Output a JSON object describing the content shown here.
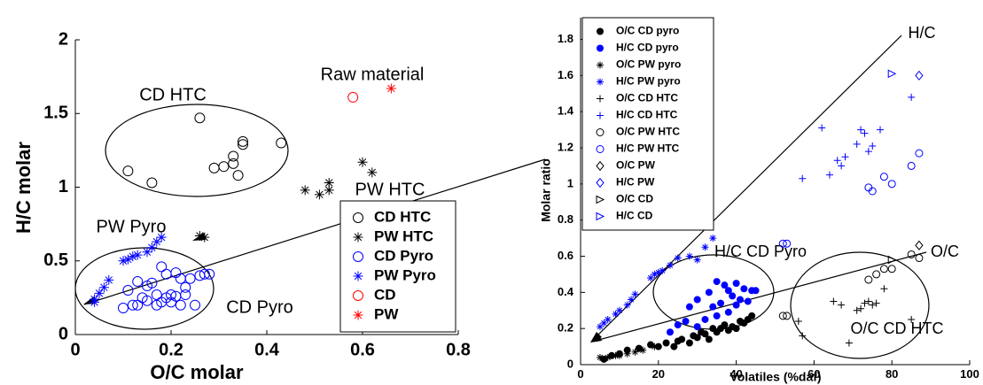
{
  "chart_data": [
    {
      "type": "scatter",
      "x_label": "O/C molar",
      "y_label": "H/C molar",
      "xlim": [
        0,
        0.8
      ],
      "xticks": [
        0,
        0.2,
        0.4,
        0.6,
        0.8
      ],
      "ylim": [
        0,
        2
      ],
      "yticks": [
        0,
        0.5,
        1,
        1.5,
        2
      ],
      "legend": "lower right",
      "annotations": [
        "Raw material",
        "CD HTC",
        "PW HTC",
        "PW Pyro",
        "CD Pyro"
      ],
      "series": [
        {
          "name": "CD HTC",
          "color": "#000000",
          "marker": "circle",
          "x": [
            0.11,
            0.16,
            0.26,
            0.29,
            0.31,
            0.33,
            0.33,
            0.34,
            0.35,
            0.35,
            0.43
          ],
          "values": [
            1.11,
            1.03,
            1.47,
            1.13,
            1.14,
            1.16,
            1.21,
            1.08,
            1.29,
            1.31,
            1.3
          ]
        },
        {
          "name": "PW HTC",
          "color": "#000000",
          "marker": "asterisk",
          "x": [
            0.26,
            0.27,
            0.48,
            0.51,
            0.53,
            0.53,
            0.6,
            0.62
          ],
          "values": [
            0.67,
            0.66,
            0.98,
            0.95,
            1.03,
            0.98,
            1.17,
            1.1
          ]
        },
        {
          "name": "CD Pyro",
          "color": "#0000ff",
          "marker": "circle",
          "x": [
            0.1,
            0.11,
            0.12,
            0.13,
            0.13,
            0.14,
            0.15,
            0.15,
            0.16,
            0.17,
            0.17,
            0.18,
            0.18,
            0.19,
            0.19,
            0.2,
            0.2,
            0.21,
            0.21,
            0.22,
            0.22,
            0.23,
            0.23,
            0.24,
            0.25,
            0.26,
            0.27,
            0.28
          ],
          "values": [
            0.18,
            0.3,
            0.2,
            0.2,
            0.36,
            0.25,
            0.23,
            0.33,
            0.35,
            0.2,
            0.27,
            0.22,
            0.46,
            0.25,
            0.41,
            0.27,
            0.22,
            0.42,
            0.26,
            0.38,
            0.2,
            0.32,
            0.27,
            0.38,
            0.2,
            0.4,
            0.41,
            0.41
          ]
        },
        {
          "name": "PW Pyro",
          "color": "#0000ff",
          "marker": "asterisk",
          "x": [
            0.04,
            0.04,
            0.05,
            0.06,
            0.07,
            0.1,
            0.11,
            0.12,
            0.13,
            0.15,
            0.16,
            0.17,
            0.18
          ],
          "values": [
            0.22,
            0.24,
            0.28,
            0.32,
            0.37,
            0.5,
            0.51,
            0.53,
            0.54,
            0.56,
            0.59,
            0.63,
            0.66
          ]
        },
        {
          "name": "CD",
          "color": "#ff0000",
          "marker": "circle",
          "x": [
            0.58
          ],
          "values": [
            1.61
          ]
        },
        {
          "name": "PW",
          "color": "#ff0000",
          "marker": "asterisk",
          "x": [
            0.66
          ],
          "values": [
            1.67
          ]
        }
      ]
    },
    {
      "type": "scatter",
      "x_label": "Volatiles (%daf)",
      "y_label": "Molar ratio",
      "xlim": [
        0,
        100
      ],
      "xticks": [
        0,
        20,
        40,
        60,
        80,
        100
      ],
      "ylim": [
        0,
        1.92
      ],
      "yticks": [
        0,
        0.2,
        0.4,
        0.6,
        0.8,
        1,
        1.2,
        1.4,
        1.6,
        1.8
      ],
      "legend": "upper left",
      "annotations": [
        "H/C",
        "O/C",
        "H/C CD Pyro",
        "O/C CD HTC"
      ],
      "series": [
        {
          "name": "O/C CD pyro",
          "color": "#000000",
          "marker": "dot",
          "x": [
            6,
            8,
            10,
            12,
            15,
            18,
            20,
            22,
            24,
            25,
            26,
            28,
            29,
            30,
            31,
            32,
            33,
            34,
            35,
            36,
            37,
            38,
            39,
            40,
            41,
            42,
            43,
            44
          ],
          "values": [
            0.03,
            0.05,
            0.06,
            0.08,
            0.09,
            0.11,
            0.1,
            0.12,
            0.1,
            0.13,
            0.14,
            0.12,
            0.16,
            0.15,
            0.18,
            0.17,
            0.14,
            0.2,
            0.18,
            0.2,
            0.22,
            0.19,
            0.21,
            0.2,
            0.24,
            0.23,
            0.25,
            0.27
          ]
        },
        {
          "name": "H/C CD pyro",
          "color": "#0000ff",
          "marker": "dot",
          "x": [
            23,
            25,
            27,
            28,
            30,
            30,
            32,
            33,
            34,
            35,
            35,
            36,
            37,
            38,
            38,
            39,
            40,
            40,
            41,
            42,
            43,
            44,
            45
          ],
          "values": [
            0.18,
            0.22,
            0.24,
            0.32,
            0.21,
            0.36,
            0.25,
            0.4,
            0.32,
            0.27,
            0.46,
            0.34,
            0.44,
            0.29,
            0.41,
            0.38,
            0.45,
            0.33,
            0.36,
            0.42,
            0.35,
            0.41,
            0.41
          ]
        },
        {
          "name": "O/C PW pyro",
          "color": "#000000",
          "marker": "asterisk",
          "x": [
            5,
            7,
            9,
            10,
            12,
            14,
            16,
            19
          ],
          "values": [
            0.04,
            0.04,
            0.05,
            0.05,
            0.06,
            0.07,
            0.08,
            0.1
          ]
        },
        {
          "name": "H/C PW pyro",
          "color": "#0000ff",
          "marker": "asterisk",
          "x": [
            5,
            6,
            7,
            9,
            10,
            12,
            13,
            14,
            18,
            19,
            20,
            21,
            23,
            25,
            28,
            30,
            32,
            34
          ],
          "values": [
            0.21,
            0.23,
            0.25,
            0.28,
            0.3,
            0.33,
            0.36,
            0.39,
            0.48,
            0.5,
            0.51,
            0.52,
            0.55,
            0.59,
            0.6,
            0.58,
            0.65,
            0.7
          ]
        },
        {
          "name": "O/C CD HTC",
          "color": "#000000",
          "marker": "plus",
          "x": [
            56,
            57,
            65,
            67,
            69,
            71,
            72,
            73,
            74,
            75,
            76,
            78,
            85
          ],
          "values": [
            0.24,
            0.16,
            0.35,
            0.33,
            0.12,
            0.3,
            0.31,
            0.34,
            0.35,
            0.33,
            0.34,
            0.42,
            0.25
          ]
        },
        {
          "name": "H/C CD HTC",
          "color": "#0000ff",
          "marker": "plus",
          "x": [
            57,
            62,
            64,
            66,
            67,
            68,
            71,
            72,
            73,
            74,
            75,
            77,
            85
          ],
          "values": [
            1.03,
            1.31,
            1.05,
            1.13,
            1.1,
            1.15,
            1.22,
            1.3,
            1.28,
            1.18,
            1.21,
            1.3,
            1.48
          ]
        },
        {
          "name": "O/C PW HTC",
          "color": "#000000",
          "marker": "circle",
          "x": [
            52,
            53,
            74,
            76,
            78,
            80,
            85,
            87
          ],
          "values": [
            0.27,
            0.27,
            0.47,
            0.5,
            0.53,
            0.53,
            0.61,
            0.59
          ]
        },
        {
          "name": "H/C PW HTC",
          "color": "#0000ff",
          "marker": "circle",
          "x": [
            52,
            53,
            74,
            75,
            78,
            80,
            85,
            87
          ],
          "values": [
            0.67,
            0.67,
            0.98,
            0.96,
            1.04,
            1.0,
            1.1,
            1.17
          ]
        },
        {
          "name": "O/C PW",
          "color": "#000000",
          "marker": "diamond",
          "x": [
            87
          ],
          "values": [
            0.66
          ]
        },
        {
          "name": "H/C PW",
          "color": "#0000ff",
          "marker": "diamond",
          "x": [
            87
          ],
          "values": [
            1.6
          ]
        },
        {
          "name": "O/C CD",
          "color": "#000000",
          "marker": "triangle-right",
          "x": [
            80
          ],
          "values": [
            0.58
          ]
        },
        {
          "name": "H/C CD",
          "color": "#0000ff",
          "marker": "triangle-right",
          "x": [
            80
          ],
          "values": [
            1.61
          ]
        }
      ]
    }
  ]
}
